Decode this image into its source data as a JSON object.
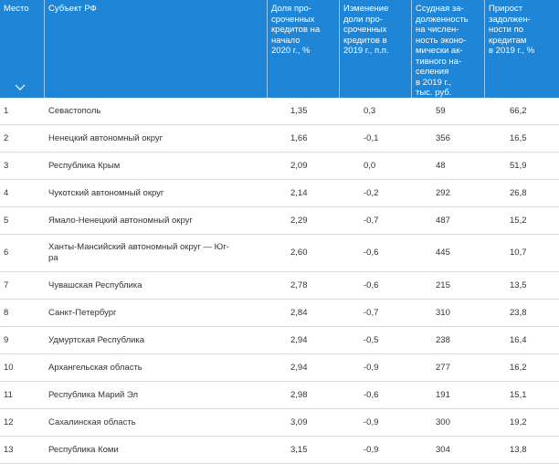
{
  "table": {
    "headers": [
      "Место",
      "Субъект РФ",
      "Доля про-\nсроченных\nкредитов на\nначало\n2020 г., %",
      "Изменение\nдоли про-\nсроченных\nкредитов в\n2019 г., п.п.",
      "Ссудная за-\nдолженность\nна числен-\nность эконо-\nмически ак-\nтивного на-\nселения\nв 2019 г.,\nтыс. руб.",
      "Прирост\nзадолжен-\nности по\nкредитам\nв 2019 г., %"
    ],
    "rows": [
      [
        "1",
        "Севастополь",
        "1,35",
        "0,3",
        "59",
        "66,2"
      ],
      [
        "2",
        "Ненецкий автономный округ",
        "1,66",
        "-0,1",
        "356",
        "16,5"
      ],
      [
        "3",
        "Республика Крым",
        "2,09",
        "0,0",
        "48",
        "51,9"
      ],
      [
        "4",
        "Чукотский автономный округ",
        "2,14",
        "-0,2",
        "292",
        "26,8"
      ],
      [
        "5",
        "Ямало-Ненецкий автономный округ",
        "2,29",
        "-0,7",
        "487",
        "15,2"
      ],
      [
        "6",
        "Ханты-Мансийский автономный округ — Юг-\nра",
        "2,60",
        "-0,6",
        "445",
        "10,7"
      ],
      [
        "7",
        "Чувашская Республика",
        "2,78",
        "-0,6",
        "215",
        "13,5"
      ],
      [
        "8",
        "Санкт-Петербург",
        "2,84",
        "-0,7",
        "310",
        "23,8"
      ],
      [
        "9",
        "Удмуртская Республика",
        "2,94",
        "-0,5",
        "238",
        "16,4"
      ],
      [
        "10",
        "Архангельская область",
        "2,94",
        "-0,9",
        "277",
        "16,2"
      ],
      [
        "11",
        "Республика Марий Эл",
        "2,98",
        "-0,6",
        "191",
        "15,1"
      ],
      [
        "12",
        "Сахалинская область",
        "3,09",
        "-0,9",
        "300",
        "19,2"
      ],
      [
        "13",
        "Республика Коми",
        "3,15",
        "-0,9",
        "304",
        "13,8"
      ]
    ]
  },
  "icons": {
    "sort": "chevron-down-icon"
  },
  "colors": {
    "header_bg": "#1f85d6",
    "header_text": "#ffffff",
    "row_border": "#d9d9d9"
  }
}
